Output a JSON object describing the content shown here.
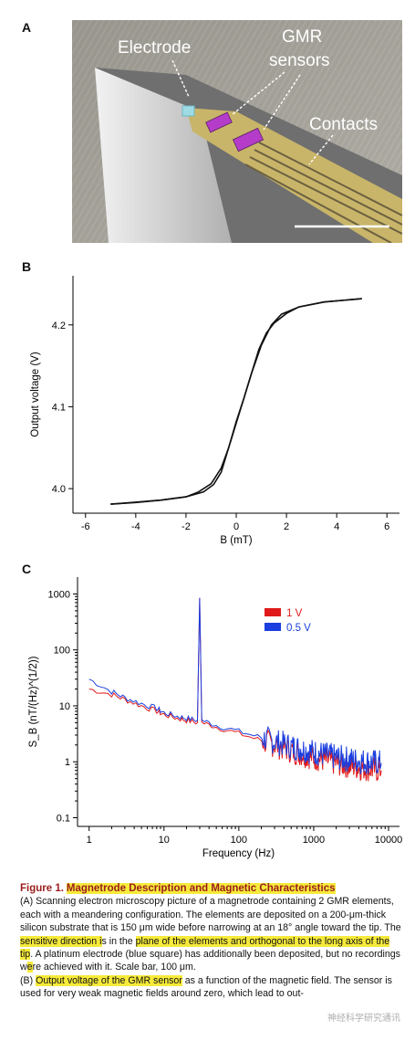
{
  "panels": {
    "a": {
      "letter": "A",
      "labels": {
        "electrode": "Electrode",
        "gmr_line1": "GMR",
        "gmr_line2": "sensors",
        "contacts": "Contacts"
      }
    },
    "b": {
      "letter": "B"
    },
    "c": {
      "letter": "C"
    }
  },
  "chart_data": [
    {
      "type": "line",
      "xlabel": "B (mT)",
      "ylabel": "Output voltage (V)",
      "xlim": [
        -6.5,
        6.5
      ],
      "ylim": [
        3.97,
        4.26
      ],
      "xticks": [
        -6,
        -4,
        -2,
        0,
        2,
        4,
        6
      ],
      "yticks": [
        4.0,
        4.1,
        4.2
      ],
      "series": [
        {
          "values": [
            [
              -5,
              3.981
            ],
            [
              -4,
              3.983
            ],
            [
              -3,
              3.986
            ],
            [
              -2,
              3.99
            ],
            [
              -1.5,
              3.996
            ],
            [
              -1,
              4.006
            ],
            [
              -0.6,
              4.025
            ],
            [
              -0.3,
              4.05
            ],
            [
              0,
              4.08
            ],
            [
              0.3,
              4.11
            ],
            [
              0.6,
              4.14
            ],
            [
              1,
              4.175
            ],
            [
              1.4,
              4.2
            ],
            [
              1.8,
              4.213
            ],
            [
              2.5,
              4.222
            ],
            [
              3.5,
              4.228
            ],
            [
              5,
              4.232
            ]
          ]
        },
        {
          "values": [
            [
              5,
              4.232
            ],
            [
              3.5,
              4.228
            ],
            [
              2.5,
              4.222
            ],
            [
              2,
              4.214
            ],
            [
              1.5,
              4.202
            ],
            [
              1.2,
              4.19
            ],
            [
              0.9,
              4.17
            ],
            [
              0.6,
              4.14
            ],
            [
              0.3,
              4.11
            ],
            [
              0,
              4.082
            ],
            [
              -0.3,
              4.05
            ],
            [
              -0.6,
              4.02
            ],
            [
              -0.9,
              4.005
            ],
            [
              -1.3,
              3.996
            ],
            [
              -2,
              3.99
            ],
            [
              -3,
              3.986
            ],
            [
              -5,
              3.981
            ]
          ]
        }
      ]
    },
    {
      "type": "line",
      "xlabel": "Frequency (Hz)",
      "ylabel": "S_B (nT/(Hz)^(1/2))",
      "xscale": "log",
      "yscale": "log",
      "xlim": [
        0.7,
        14000
      ],
      "ylim": [
        0.07,
        2000
      ],
      "xticks": [
        1,
        10,
        100,
        1000,
        10000
      ],
      "yticks": [
        0.1,
        1,
        10,
        100,
        1000
      ],
      "legend": "top-right",
      "series": [
        {
          "name": "1 V",
          "color": "#e01a1a",
          "values": [
            [
              1,
              20
            ],
            [
              2,
              16
            ],
            [
              3,
              13
            ],
            [
              5,
              10
            ],
            [
              8,
              8
            ],
            [
              10,
              7
            ],
            [
              15,
              6
            ],
            [
              20,
              5.5
            ],
            [
              28,
              5
            ],
            [
              30,
              850
            ],
            [
              32,
              5
            ],
            [
              50,
              4.2
            ],
            [
              100,
              3.2
            ],
            [
              200,
              2.4
            ],
            [
              500,
              1.6
            ],
            [
              1000,
              1.2
            ],
            [
              2000,
              0.95
            ],
            [
              4000,
              0.8
            ],
            [
              8000,
              0.7
            ]
          ]
        },
        {
          "name": "0.5 V",
          "color": "#1a3ee0",
          "values": [
            [
              1,
              30
            ],
            [
              2,
              18
            ],
            [
              3,
              14
            ],
            [
              5,
              11
            ],
            [
              8,
              9
            ],
            [
              10,
              7.5
            ],
            [
              15,
              6.5
            ],
            [
              20,
              6
            ],
            [
              28,
              5.5
            ],
            [
              30,
              850
            ],
            [
              32,
              5.5
            ],
            [
              50,
              4.5
            ],
            [
              100,
              3.5
            ],
            [
              200,
              2.7
            ],
            [
              500,
              1.9
            ],
            [
              1000,
              1.5
            ],
            [
              2000,
              1.2
            ],
            [
              4000,
              1.05
            ],
            [
              8000,
              0.95
            ]
          ]
        }
      ]
    }
  ],
  "caption": {
    "title_prefix": "Figure 1.",
    "title": "Magnetrode Description and Magnetic Characteristics",
    "a1": "(A) Scanning electron microscopy picture of a magnetrode containing 2 GMR elements, each with a meandering configuration. The elements are deposited on a 200-μm-thick silicon substrate that is 150 μm wide before narrowing at an 18° angle toward the tip. The ",
    "a_hl1": "sensitive direction i",
    "a2": "s in the ",
    "a_hl2": "plane of the elements and orthogonal to the long axis of the tip",
    "a3": ". A platinum electrode (blue square) has additionally been deposited, but no recordings w",
    "a_hl3": "e",
    "a4": "re achieved with it. Scale bar, 100 μm.",
    "b1": "(B) ",
    "b_hl1": "Output voltage of the GMR sensor",
    "b2": " as a function of the magnetic field. The sensor is used for very weak magnetic fields around zero, which lead to out-"
  },
  "watermark": "神经科学研究通讯"
}
